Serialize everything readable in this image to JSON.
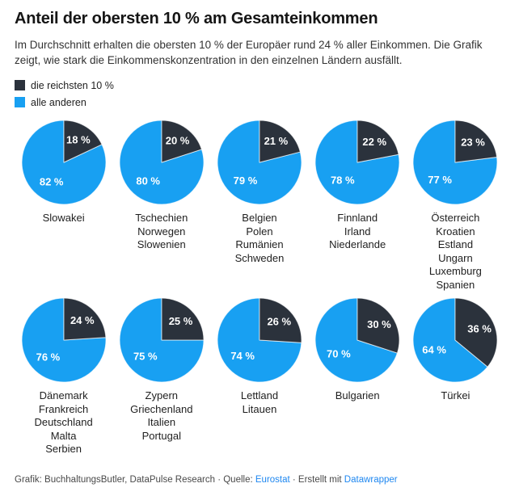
{
  "header": {
    "title": "Anteil der obersten 10 % am Gesamteinkommen",
    "subtitle": "Im Durchschnitt erhalten die obersten 10 % der Europäer rund 24 % aller Einkommen. Die Grafik zeigt, wie stark die Einkommenskonzentration in den einzelnen Ländern ausfällt."
  },
  "legend": {
    "items": [
      {
        "label": "die reichsten 10 %",
        "color": "#2b323c"
      },
      {
        "label": "alle anderen",
        "color": "#18a0f2"
      }
    ]
  },
  "chart_data": {
    "type": "pie",
    "title": "Anteil der obersten 10 % am Gesamteinkommen",
    "series_labels": [
      "die reichsten 10 %",
      "alle anderen"
    ],
    "colors": {
      "rich": "#2b323c",
      "others": "#18a0f2",
      "label_text": "#ffffff"
    },
    "value_suffix": " %",
    "layout": {
      "rows": 2,
      "columns": 5,
      "legend_position": "top-left"
    },
    "pies": [
      {
        "countries": [
          "Slowakei"
        ],
        "rich_pct": 18,
        "others_pct": 82
      },
      {
        "countries": [
          "Tschechien",
          "Norwegen",
          "Slowenien"
        ],
        "rich_pct": 20,
        "others_pct": 80
      },
      {
        "countries": [
          "Belgien",
          "Polen",
          "Rumänien",
          "Schweden"
        ],
        "rich_pct": 21,
        "others_pct": 79
      },
      {
        "countries": [
          "Finnland",
          "Irland",
          "Niederlande"
        ],
        "rich_pct": 22,
        "others_pct": 78
      },
      {
        "countries": [
          "Österreich",
          "Kroatien",
          "Estland",
          "Ungarn",
          "Luxemburg",
          "Spanien"
        ],
        "rich_pct": 23,
        "others_pct": 77
      },
      {
        "countries": [
          "Dänemark",
          "Frankreich",
          "Deutschland",
          "Malta",
          "Serbien"
        ],
        "rich_pct": 24,
        "others_pct": 76
      },
      {
        "countries": [
          "Zypern",
          "Griechenland",
          "Italien",
          "Portugal"
        ],
        "rich_pct": 25,
        "others_pct": 75
      },
      {
        "countries": [
          "Lettland",
          "Litauen"
        ],
        "rich_pct": 26,
        "others_pct": 74
      },
      {
        "countries": [
          "Bulgarien"
        ],
        "rich_pct": 30,
        "others_pct": 70
      },
      {
        "countries": [
          "Türkei"
        ],
        "rich_pct": 36,
        "others_pct": 64
      }
    ]
  },
  "footer": {
    "prefix": "Grafik: BuchhaltungsButler, DataPulse Research · Quelle: ",
    "source_link": "Eurostat",
    "middle": " · Erstellt mit ",
    "tool_link": "Datawrapper"
  }
}
